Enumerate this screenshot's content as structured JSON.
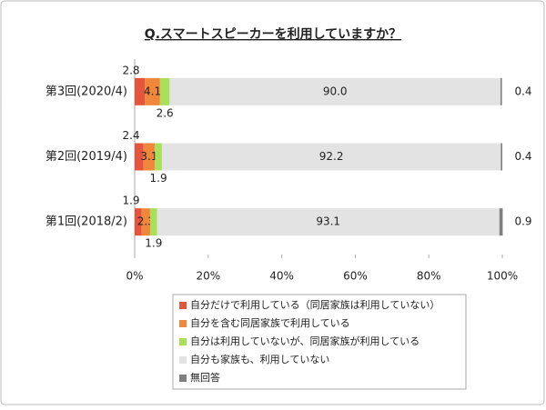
{
  "chart_data": {
    "type": "stacked-bar-horizontal",
    "title": "Q.スマートスピーカーを利用していますか？",
    "categories": [
      "第3回(2020/4)",
      "第2回(2019/4)",
      "第1回(2018/2)"
    ],
    "series": [
      {
        "name": "自分だけで利用している（同居家族は利用していない）",
        "color": "#e4553d",
        "values": [
          2.8,
          2.4,
          1.9
        ]
      },
      {
        "name": "自分を含む同居家族で利用している",
        "color": "#f0873a",
        "values": [
          4.1,
          3.1,
          2.3
        ]
      },
      {
        "name": "自分は利用していないが、同居家族が利用している",
        "color": "#a8e05c",
        "values": [
          2.6,
          1.9,
          1.9
        ]
      },
      {
        "name": "自分も家族も、利用していない",
        "color": "#e3e3e3",
        "values": [
          90.0,
          92.2,
          93.1
        ],
        "value_labels": [
          "90.0",
          "92.2",
          "93.1"
        ]
      },
      {
        "name": "無回答",
        "color": "#7f7f7f",
        "values": [
          0.4,
          0.4,
          0.9
        ]
      }
    ],
    "xlim": [
      0,
      100
    ],
    "xticks": [
      {
        "value": 0,
        "label": "0%"
      },
      {
        "value": 20,
        "label": "20%"
      },
      {
        "value": 40,
        "label": "40%"
      },
      {
        "value": 60,
        "label": "60%"
      },
      {
        "value": 80,
        "label": "80%"
      },
      {
        "value": 100,
        "label": "100%"
      }
    ]
  }
}
